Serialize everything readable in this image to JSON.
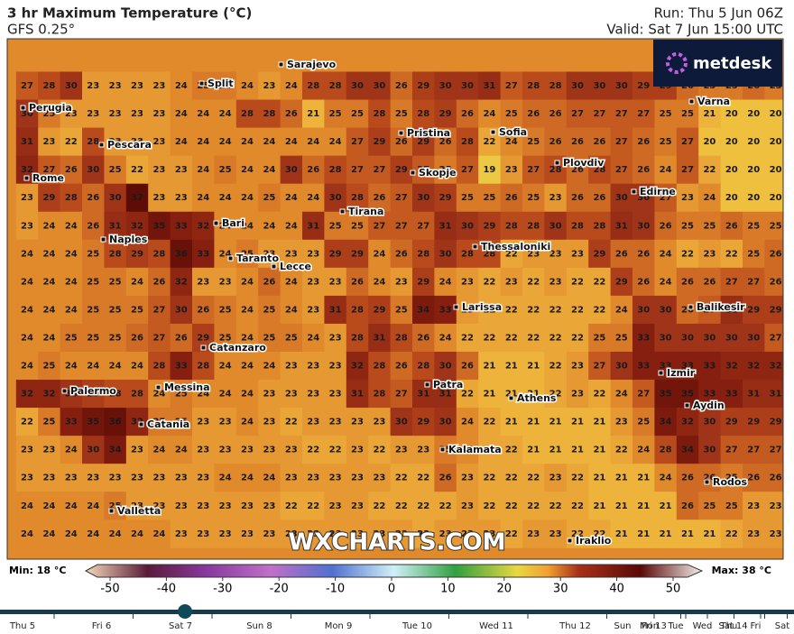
{
  "header": {
    "title": "3 hr Maximum Temperature (°C)",
    "model": "GFS 0.25°",
    "run": "Run: Thu 5 Jun 06Z",
    "valid": "Valid: Sat 7 Jun 15:00 UTC"
  },
  "logo": "metdesk",
  "watermark": "WXCHARTS.COM",
  "grid": [
    [
      27,
      28,
      30,
      23,
      23,
      23,
      23,
      24,
      25,
      25,
      24,
      23,
      24,
      28,
      28,
      30,
      30,
      26,
      29,
      30,
      30,
      31,
      27,
      28,
      28,
      30,
      30,
      30,
      29,
      29,
      26,
      25,
      25,
      26,
      25
    ],
    [
      30,
      25,
      23,
      23,
      23,
      23,
      23,
      24,
      24,
      24,
      28,
      28,
      26,
      21,
      25,
      25,
      28,
      25,
      28,
      29,
      26,
      24,
      25,
      26,
      26,
      27,
      27,
      27,
      27,
      25,
      25,
      21,
      20,
      20,
      20
    ],
    [
      31,
      23,
      22,
      28,
      23,
      23,
      23,
      24,
      24,
      24,
      24,
      24,
      24,
      24,
      24,
      27,
      29,
      26,
      29,
      26,
      28,
      22,
      24,
      25,
      26,
      26,
      26,
      27,
      26,
      25,
      27,
      20,
      20,
      20,
      20
    ],
    [
      32,
      27,
      26,
      30,
      25,
      22,
      23,
      23,
      24,
      25,
      24,
      24,
      30,
      26,
      28,
      27,
      27,
      29,
      27,
      25,
      27,
      19,
      23,
      27,
      28,
      26,
      28,
      27,
      26,
      24,
      27,
      22,
      20,
      20,
      20
    ],
    [
      23,
      29,
      28,
      26,
      30,
      37,
      23,
      23,
      24,
      24,
      24,
      25,
      24,
      24,
      30,
      28,
      26,
      27,
      30,
      29,
      25,
      25,
      26,
      25,
      23,
      26,
      26,
      30,
      30,
      27,
      23,
      24,
      20,
      20,
      20
    ],
    [
      23,
      24,
      24,
      26,
      31,
      32,
      35,
      33,
      32,
      24,
      24,
      24,
      24,
      31,
      25,
      25,
      27,
      27,
      27,
      31,
      30,
      29,
      28,
      28,
      30,
      28,
      28,
      31,
      30,
      26,
      25,
      25,
      26,
      25,
      25
    ],
    [
      24,
      24,
      24,
      25,
      28,
      29,
      28,
      36,
      33,
      24,
      25,
      23,
      23,
      23,
      29,
      29,
      24,
      26,
      28,
      30,
      28,
      28,
      22,
      23,
      23,
      23,
      29,
      26,
      26,
      24,
      22,
      23,
      22,
      25,
      26
    ],
    [
      24,
      24,
      24,
      25,
      25,
      24,
      26,
      32,
      23,
      23,
      24,
      26,
      24,
      23,
      23,
      26,
      24,
      23,
      29,
      24,
      23,
      22,
      23,
      22,
      23,
      22,
      22,
      29,
      26,
      24,
      26,
      26,
      27,
      27,
      26
    ],
    [
      24,
      24,
      24,
      25,
      25,
      25,
      27,
      30,
      26,
      25,
      24,
      25,
      24,
      23,
      31,
      28,
      29,
      25,
      34,
      33,
      23,
      22,
      22,
      22,
      22,
      22,
      22,
      24,
      30,
      30,
      26,
      27,
      31,
      29,
      29
    ],
    [
      24,
      24,
      25,
      25,
      25,
      26,
      27,
      26,
      29,
      25,
      24,
      25,
      25,
      24,
      23,
      28,
      31,
      28,
      26,
      24,
      22,
      22,
      22,
      22,
      22,
      22,
      25,
      25,
      33,
      30,
      30,
      30,
      30,
      30,
      27
    ],
    [
      24,
      25,
      24,
      24,
      24,
      24,
      28,
      33,
      28,
      24,
      24,
      24,
      23,
      23,
      23,
      32,
      28,
      26,
      28,
      30,
      26,
      21,
      21,
      21,
      22,
      23,
      27,
      30,
      33,
      33,
      33,
      33,
      32,
      32,
      32
    ],
    [
      32,
      32,
      30,
      29,
      28,
      28,
      24,
      25,
      24,
      24,
      24,
      23,
      23,
      23,
      23,
      31,
      28,
      27,
      31,
      31,
      22,
      21,
      21,
      21,
      22,
      23,
      22,
      24,
      27,
      35,
      35,
      33,
      33,
      31,
      31
    ],
    [
      22,
      25,
      33,
      35,
      36,
      32,
      25,
      25,
      23,
      23,
      24,
      23,
      22,
      23,
      23,
      23,
      23,
      30,
      29,
      30,
      24,
      22,
      21,
      21,
      21,
      21,
      21,
      23,
      25,
      34,
      32,
      30,
      29,
      29,
      29
    ],
    [
      23,
      23,
      24,
      30,
      34,
      23,
      24,
      24,
      23,
      23,
      23,
      23,
      23,
      22,
      22,
      23,
      22,
      23,
      23,
      25,
      24,
      22,
      22,
      21,
      21,
      21,
      21,
      22,
      24,
      28,
      34,
      30,
      27,
      27,
      27
    ],
    [
      23,
      23,
      23,
      23,
      23,
      23,
      23,
      23,
      23,
      24,
      24,
      24,
      23,
      23,
      23,
      23,
      23,
      22,
      22,
      26,
      23,
      22,
      22,
      22,
      23,
      22,
      21,
      21,
      21,
      24,
      26,
      26,
      25,
      26,
      26
    ],
    [
      24,
      24,
      24,
      24,
      25,
      23,
      23,
      23,
      23,
      23,
      23,
      23,
      22,
      22,
      23,
      23,
      22,
      22,
      22,
      22,
      23,
      22,
      22,
      22,
      22,
      22,
      21,
      21,
      21,
      21,
      26,
      25,
      25,
      23,
      23
    ],
    [
      24,
      24,
      24,
      24,
      24,
      24,
      24,
      23,
      23,
      23,
      23,
      23,
      23,
      23,
      23,
      23,
      23,
      23,
      22,
      23,
      23,
      23,
      22,
      23,
      23,
      22,
      22,
      21,
      21,
      21,
      21,
      21,
      22,
      23,
      23
    ]
  ],
  "cities": [
    "Sarajevo",
    "Split",
    "Perugia",
    "Pristina",
    "Sofia",
    "Varna",
    "Pescara",
    "Plovdiv",
    "Rome",
    "Skopje",
    "Edirne",
    "Tirana",
    "Bari",
    "Naples",
    "Thessaloniki",
    "Taranto",
    "Lecce",
    "Balikesir",
    "Larissa",
    "Catanzaro",
    "Izmir",
    "Messina",
    "Palermo",
    "Patra",
    "Athens",
    "Aydin",
    "Catania",
    "Kalamata",
    "Rodos",
    "Valletta",
    "Iraklio"
  ],
  "colorbar": {
    "min": "Min: 18 °C",
    "max": "Max: 38 °C",
    "ticks": [
      -50,
      -40,
      -30,
      -20,
      -10,
      0,
      10,
      20,
      30,
      40,
      50
    ]
  },
  "timeline": {
    "days": [
      "Thu 5",
      "Fri 6",
      "Sat 7",
      "Sun 8",
      "Mon 9",
      "Tue 10",
      "Wed 11",
      "Thu 12",
      "Fri 13",
      "Sat 14",
      "Sun",
      "Mon",
      "Tue",
      "Wed",
      "Thu",
      "Fri",
      "Sat"
    ],
    "selected": 2
  }
}
